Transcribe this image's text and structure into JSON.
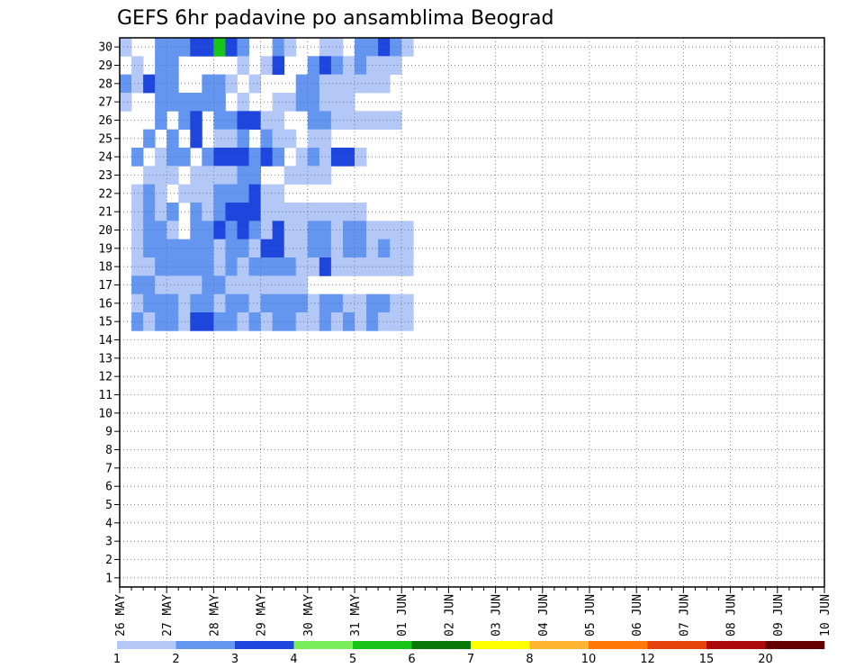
{
  "chart_data": {
    "type": "heatmap",
    "title": "GEFS 6hr padavine po ansamblima Beograd",
    "xlabel": "",
    "ylabel": "",
    "y_ticks": [
      "1",
      "2",
      "3",
      "4",
      "5",
      "6",
      "7",
      "8",
      "9",
      "10",
      "11",
      "12",
      "13",
      "14",
      "15",
      "16",
      "17",
      "18",
      "19",
      "20",
      "21",
      "22",
      "23",
      "24",
      "25",
      "26",
      "27",
      "28",
      "29",
      "30"
    ],
    "ylim": [
      1,
      30
    ],
    "x_ticks": [
      "26 MAY",
      "27 MAY",
      "28 MAY",
      "29 MAY",
      "30 MAY",
      "31 MAY",
      "01 JUN",
      "02 JUN",
      "03 JUN",
      "04 JUN",
      "05 JUN",
      "06 JUN",
      "07 JUN",
      "08 JUN",
      "09 JUN",
      "10 JUN"
    ],
    "x_steps": 60,
    "steps_per_day": 4,
    "grid": true,
    "colorbar": {
      "placement": "bottom",
      "labels": [
        "1",
        "2",
        "3",
        "4",
        "5",
        "6",
        "7",
        "8",
        "10",
        "12",
        "15",
        "20"
      ],
      "colors": [
        "#b4c8f8",
        "#6496f0",
        "#1e46dc",
        "#78ef5a",
        "#18c418",
        "#087808",
        "#ffff00",
        "#ffb432",
        "#ff780a",
        "#e6420a",
        "#aa0a0a",
        "#640000"
      ]
    },
    "cells": [
      [
        0,
        30,
        1
      ],
      [
        3,
        30,
        2
      ],
      [
        4,
        30,
        2
      ],
      [
        5,
        30,
        2
      ],
      [
        6,
        30,
        3
      ],
      [
        7,
        30,
        3
      ],
      [
        8,
        30,
        5
      ],
      [
        9,
        30,
        3
      ],
      [
        10,
        30,
        2
      ],
      [
        13,
        30,
        2
      ],
      [
        14,
        30,
        1
      ],
      [
        17,
        30,
        1
      ],
      [
        18,
        30,
        1
      ],
      [
        20,
        30,
        2
      ],
      [
        21,
        30,
        2
      ],
      [
        22,
        30,
        3
      ],
      [
        23,
        30,
        2
      ],
      [
        24,
        30,
        1
      ],
      [
        1,
        29,
        1
      ],
      [
        3,
        29,
        2
      ],
      [
        4,
        29,
        2
      ],
      [
        10,
        29,
        1
      ],
      [
        12,
        29,
        1
      ],
      [
        13,
        29,
        3
      ],
      [
        16,
        29,
        2
      ],
      [
        17,
        29,
        3
      ],
      [
        18,
        29,
        2
      ],
      [
        19,
        29,
        1
      ],
      [
        20,
        29,
        2
      ],
      [
        21,
        29,
        1
      ],
      [
        22,
        29,
        1
      ],
      [
        23,
        29,
        1
      ],
      [
        0,
        28,
        2
      ],
      [
        1,
        28,
        1
      ],
      [
        2,
        28,
        3
      ],
      [
        3,
        28,
        2
      ],
      [
        4,
        28,
        2
      ],
      [
        7,
        28,
        2
      ],
      [
        8,
        28,
        2
      ],
      [
        9,
        28,
        1
      ],
      [
        11,
        28,
        1
      ],
      [
        15,
        28,
        2
      ],
      [
        16,
        28,
        2
      ],
      [
        17,
        28,
        1
      ],
      [
        18,
        28,
        1
      ],
      [
        19,
        28,
        1
      ],
      [
        20,
        28,
        1
      ],
      [
        21,
        28,
        1
      ],
      [
        22,
        28,
        1
      ],
      [
        0,
        27,
        1
      ],
      [
        3,
        27,
        2
      ],
      [
        4,
        27,
        2
      ],
      [
        5,
        27,
        2
      ],
      [
        6,
        27,
        2
      ],
      [
        7,
        27,
        2
      ],
      [
        8,
        27,
        2
      ],
      [
        10,
        27,
        1
      ],
      [
        13,
        27,
        1
      ],
      [
        14,
        27,
        1
      ],
      [
        15,
        27,
        2
      ],
      [
        16,
        27,
        2
      ],
      [
        17,
        27,
        1
      ],
      [
        18,
        27,
        1
      ],
      [
        19,
        27,
        1
      ],
      [
        3,
        26,
        2
      ],
      [
        5,
        26,
        2
      ],
      [
        6,
        26,
        3
      ],
      [
        8,
        26,
        2
      ],
      [
        9,
        26,
        2
      ],
      [
        10,
        26,
        3
      ],
      [
        11,
        26,
        3
      ],
      [
        12,
        26,
        1
      ],
      [
        13,
        26,
        1
      ],
      [
        16,
        26,
        2
      ],
      [
        17,
        26,
        2
      ],
      [
        18,
        26,
        1
      ],
      [
        19,
        26,
        1
      ],
      [
        20,
        26,
        1
      ],
      [
        21,
        26,
        1
      ],
      [
        22,
        26,
        1
      ],
      [
        23,
        26,
        1
      ],
      [
        2,
        25,
        2
      ],
      [
        4,
        25,
        2
      ],
      [
        6,
        25,
        3
      ],
      [
        8,
        25,
        1
      ],
      [
        9,
        25,
        1
      ],
      [
        10,
        25,
        2
      ],
      [
        12,
        25,
        2
      ],
      [
        13,
        25,
        1
      ],
      [
        14,
        25,
        1
      ],
      [
        16,
        25,
        1
      ],
      [
        17,
        25,
        1
      ],
      [
        1,
        24,
        2
      ],
      [
        3,
        24,
        1
      ],
      [
        4,
        24,
        2
      ],
      [
        5,
        24,
        2
      ],
      [
        7,
        24,
        2
      ],
      [
        8,
        24,
        3
      ],
      [
        9,
        24,
        3
      ],
      [
        10,
        24,
        3
      ],
      [
        11,
        24,
        2
      ],
      [
        12,
        24,
        3
      ],
      [
        13,
        24,
        2
      ],
      [
        15,
        24,
        1
      ],
      [
        16,
        24,
        2
      ],
      [
        17,
        24,
        1
      ],
      [
        18,
        24,
        3
      ],
      [
        19,
        24,
        3
      ],
      [
        20,
        24,
        1
      ],
      [
        2,
        23,
        1
      ],
      [
        3,
        23,
        1
      ],
      [
        4,
        23,
        1
      ],
      [
        6,
        23,
        1
      ],
      [
        7,
        23,
        1
      ],
      [
        8,
        23,
        1
      ],
      [
        9,
        23,
        1
      ],
      [
        10,
        23,
        2
      ],
      [
        11,
        23,
        2
      ],
      [
        14,
        23,
        1
      ],
      [
        15,
        23,
        1
      ],
      [
        16,
        23,
        1
      ],
      [
        17,
        23,
        1
      ],
      [
        1,
        22,
        1
      ],
      [
        2,
        22,
        2
      ],
      [
        3,
        22,
        1
      ],
      [
        5,
        22,
        1
      ],
      [
        6,
        22,
        1
      ],
      [
        7,
        22,
        1
      ],
      [
        8,
        22,
        2
      ],
      [
        9,
        22,
        2
      ],
      [
        10,
        22,
        2
      ],
      [
        11,
        22,
        3
      ],
      [
        12,
        22,
        1
      ],
      [
        13,
        22,
        1
      ],
      [
        1,
        21,
        1
      ],
      [
        2,
        21,
        2
      ],
      [
        3,
        21,
        1
      ],
      [
        4,
        21,
        2
      ],
      [
        6,
        21,
        2
      ],
      [
        7,
        21,
        1
      ],
      [
        8,
        21,
        2
      ],
      [
        9,
        21,
        3
      ],
      [
        10,
        21,
        3
      ],
      [
        11,
        21,
        3
      ],
      [
        12,
        21,
        1
      ],
      [
        13,
        21,
        1
      ],
      [
        14,
        21,
        1
      ],
      [
        15,
        21,
        1
      ],
      [
        16,
        21,
        1
      ],
      [
        17,
        21,
        1
      ],
      [
        18,
        21,
        1
      ],
      [
        19,
        21,
        1
      ],
      [
        20,
        21,
        1
      ],
      [
        1,
        20,
        1
      ],
      [
        2,
        20,
        2
      ],
      [
        3,
        20,
        2
      ],
      [
        4,
        20,
        1
      ],
      [
        6,
        20,
        2
      ],
      [
        7,
        20,
        2
      ],
      [
        8,
        20,
        3
      ],
      [
        9,
        20,
        2
      ],
      [
        10,
        20,
        3
      ],
      [
        11,
        20,
        2
      ],
      [
        12,
        20,
        1
      ],
      [
        13,
        20,
        3
      ],
      [
        14,
        20,
        1
      ],
      [
        15,
        20,
        1
      ],
      [
        16,
        20,
        2
      ],
      [
        17,
        20,
        2
      ],
      [
        18,
        20,
        1
      ],
      [
        19,
        20,
        2
      ],
      [
        20,
        20,
        2
      ],
      [
        21,
        20,
        1
      ],
      [
        22,
        20,
        1
      ],
      [
        23,
        20,
        1
      ],
      [
        24,
        20,
        1
      ],
      [
        1,
        19,
        1
      ],
      [
        2,
        19,
        2
      ],
      [
        3,
        19,
        2
      ],
      [
        4,
        19,
        2
      ],
      [
        5,
        19,
        2
      ],
      [
        6,
        19,
        2
      ],
      [
        7,
        19,
        2
      ],
      [
        8,
        19,
        1
      ],
      [
        9,
        19,
        2
      ],
      [
        10,
        19,
        2
      ],
      [
        11,
        19,
        1
      ],
      [
        12,
        19,
        3
      ],
      [
        13,
        19,
        3
      ],
      [
        14,
        19,
        1
      ],
      [
        15,
        19,
        1
      ],
      [
        16,
        19,
        2
      ],
      [
        17,
        19,
        2
      ],
      [
        18,
        19,
        1
      ],
      [
        19,
        19,
        2
      ],
      [
        20,
        19,
        2
      ],
      [
        21,
        19,
        1
      ],
      [
        22,
        19,
        2
      ],
      [
        23,
        19,
        1
      ],
      [
        24,
        19,
        1
      ],
      [
        1,
        18,
        1
      ],
      [
        2,
        18,
        1
      ],
      [
        3,
        18,
        2
      ],
      [
        4,
        18,
        2
      ],
      [
        5,
        18,
        2
      ],
      [
        6,
        18,
        2
      ],
      [
        7,
        18,
        2
      ],
      [
        8,
        18,
        1
      ],
      [
        9,
        18,
        2
      ],
      [
        10,
        18,
        1
      ],
      [
        11,
        18,
        2
      ],
      [
        12,
        18,
        2
      ],
      [
        13,
        18,
        2
      ],
      [
        14,
        18,
        2
      ],
      [
        15,
        18,
        1
      ],
      [
        16,
        18,
        1
      ],
      [
        17,
        18,
        3
      ],
      [
        18,
        18,
        1
      ],
      [
        19,
        18,
        1
      ],
      [
        20,
        18,
        1
      ],
      [
        21,
        18,
        1
      ],
      [
        22,
        18,
        1
      ],
      [
        23,
        18,
        1
      ],
      [
        24,
        18,
        1
      ],
      [
        1,
        17,
        2
      ],
      [
        2,
        17,
        2
      ],
      [
        3,
        17,
        1
      ],
      [
        4,
        17,
        1
      ],
      [
        5,
        17,
        1
      ],
      [
        6,
        17,
        1
      ],
      [
        7,
        17,
        2
      ],
      [
        8,
        17,
        2
      ],
      [
        9,
        17,
        1
      ],
      [
        10,
        17,
        1
      ],
      [
        11,
        17,
        1
      ],
      [
        12,
        17,
        1
      ],
      [
        13,
        17,
        1
      ],
      [
        14,
        17,
        1
      ],
      [
        15,
        17,
        1
      ],
      [
        1,
        16,
        1
      ],
      [
        2,
        16,
        2
      ],
      [
        3,
        16,
        2
      ],
      [
        4,
        16,
        2
      ],
      [
        5,
        16,
        1
      ],
      [
        6,
        16,
        2
      ],
      [
        7,
        16,
        2
      ],
      [
        8,
        16,
        1
      ],
      [
        9,
        16,
        2
      ],
      [
        10,
        16,
        2
      ],
      [
        11,
        16,
        1
      ],
      [
        12,
        16,
        2
      ],
      [
        13,
        16,
        2
      ],
      [
        14,
        16,
        2
      ],
      [
        15,
        16,
        2
      ],
      [
        16,
        16,
        1
      ],
      [
        17,
        16,
        2
      ],
      [
        18,
        16,
        2
      ],
      [
        19,
        16,
        1
      ],
      [
        20,
        16,
        1
      ],
      [
        21,
        16,
        2
      ],
      [
        22,
        16,
        2
      ],
      [
        23,
        16,
        1
      ],
      [
        24,
        16,
        1
      ],
      [
        1,
        15,
        2
      ],
      [
        2,
        15,
        1
      ],
      [
        3,
        15,
        2
      ],
      [
        4,
        15,
        2
      ],
      [
        5,
        15,
        1
      ],
      [
        6,
        15,
        3
      ],
      [
        7,
        15,
        3
      ],
      [
        8,
        15,
        2
      ],
      [
        9,
        15,
        2
      ],
      [
        10,
        15,
        1
      ],
      [
        11,
        15,
        2
      ],
      [
        12,
        15,
        1
      ],
      [
        13,
        15,
        2
      ],
      [
        14,
        15,
        2
      ],
      [
        15,
        15,
        1
      ],
      [
        16,
        15,
        1
      ],
      [
        17,
        15,
        2
      ],
      [
        18,
        15,
        1
      ],
      [
        19,
        15,
        2
      ],
      [
        20,
        15,
        1
      ],
      [
        21,
        15,
        2
      ],
      [
        22,
        15,
        1
      ],
      [
        23,
        15,
        1
      ],
      [
        24,
        15,
        1
      ]
    ]
  }
}
